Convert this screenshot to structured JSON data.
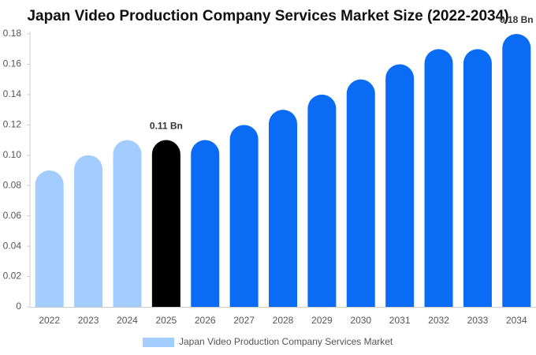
{
  "chart_data": {
    "type": "bar",
    "title": "Japan Video Production Company Services Market Size (2022-2034)",
    "categories": [
      "2022",
      "2023",
      "2024",
      "2025",
      "2026",
      "2027",
      "2028",
      "2029",
      "2030",
      "2031",
      "2032",
      "2033",
      "2034"
    ],
    "series": [
      {
        "name": "Japan Video Production Company Services Market",
        "color": "#a3cdff",
        "colors": [
          "#a3cdff",
          "#a3cdff",
          "#a3cdff",
          "#000000",
          "#0a6cf5",
          "#0a6cf5",
          "#0a6cf5",
          "#0a6cf5",
          "#0a6cf5",
          "#0a6cf5",
          "#0a6cf5",
          "#0a6cf5",
          "#0a6cf5"
        ],
        "values": [
          0.09,
          0.1,
          0.11,
          0.11,
          0.11,
          0.12,
          0.13,
          0.14,
          0.15,
          0.16,
          0.17,
          0.17,
          0.18
        ],
        "value_labels": [
          null,
          null,
          null,
          "0.11 Bn",
          null,
          null,
          null,
          null,
          null,
          null,
          null,
          null,
          "0.18 Bn"
        ]
      }
    ],
    "ylim": [
      0,
      0.18
    ],
    "yticks": [
      0,
      0.02,
      0.04,
      0.06,
      0.08,
      {
        "value": 0.1,
        "label": "0.10"
      },
      0.12,
      0.14,
      0.16,
      0.18
    ],
    "grid": false
  }
}
